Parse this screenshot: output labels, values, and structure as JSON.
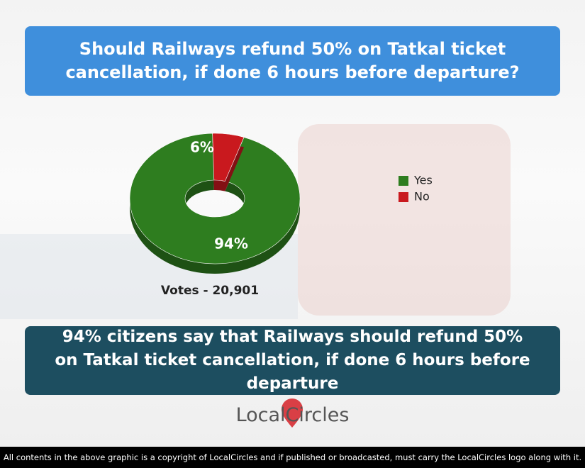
{
  "chart_data": {
    "type": "donut",
    "title": "Should Railways refund 50% on Tatkal ticket cancellation, if done 6 hours before departure?",
    "categories": [
      "Yes",
      "No"
    ],
    "values": [
      94,
      6
    ],
    "value_labels": [
      "94%",
      "6%"
    ],
    "colors": [
      "#2e7d1f",
      "#c9191e"
    ],
    "annotation": "Votes - 20,901",
    "legend": "right"
  },
  "summary": "94% citizens say that Railways should refund 50% on Tatkal ticket cancellation, if done 6 hours before departure",
  "logo": "LocalCircles",
  "footer": "All contents in the above graphic is a copyright of LocalCircles and if published or broadcasted, must carry the LocalCircles logo along with it."
}
